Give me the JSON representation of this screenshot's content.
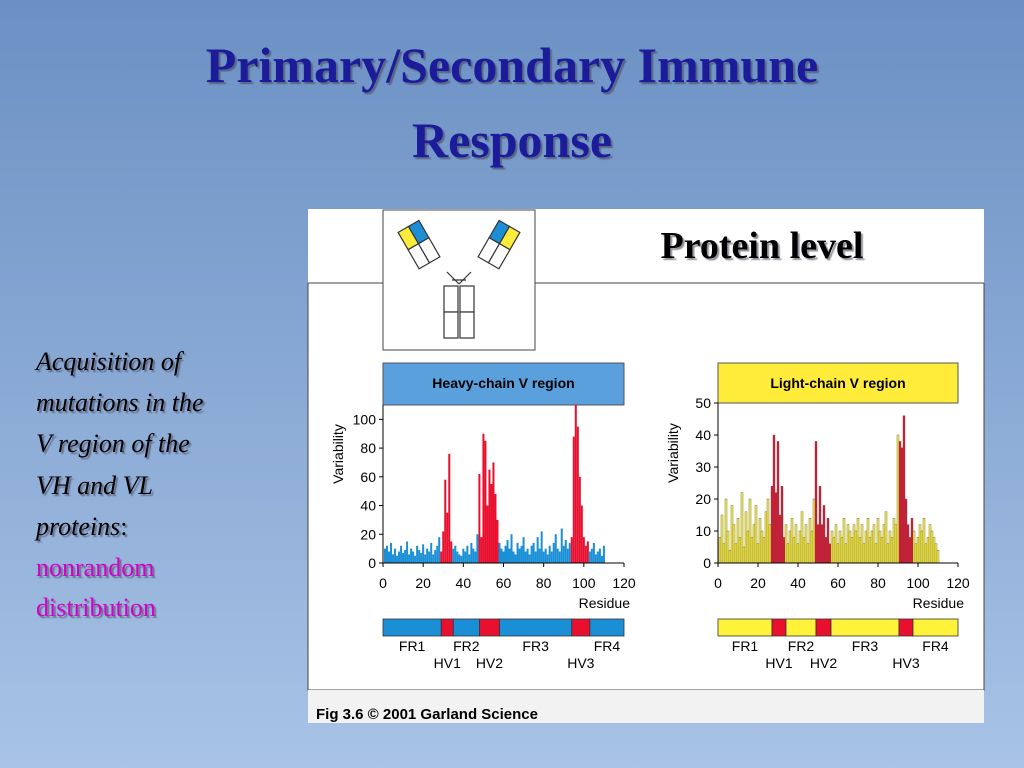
{
  "slide": {
    "title_lines": [
      "Primary/Secondary Immune",
      "Response"
    ],
    "body_lines": [
      "Acquisition of",
      "mutations in the",
      "V region of the",
      "VH and VL",
      "proteins"
    ],
    "body_colon": ":",
    "highlight_lines": [
      "nonrandom",
      "distribution"
    ],
    "figure_heading": "Protein level",
    "caption": "Fig 3.6  © 2001 Garland Science"
  },
  "chart_data": [
    {
      "type": "bar",
      "title": "Heavy-chain V  region",
      "ylabel": "Variability",
      "xlabel": "Residue",
      "xlim": [
        0,
        120
      ],
      "xticks": [
        0,
        20,
        40,
        60,
        80,
        100,
        120
      ],
      "ylim": [
        0,
        110
      ],
      "yticks": [
        0,
        20,
        40,
        60,
        80,
        100
      ],
      "x": [
        1,
        2,
        3,
        4,
        5,
        6,
        7,
        8,
        9,
        10,
        11,
        12,
        13,
        14,
        15,
        16,
        17,
        18,
        19,
        20,
        21,
        22,
        23,
        24,
        25,
        26,
        27,
        28,
        29,
        30,
        31,
        32,
        33,
        34,
        35,
        36,
        37,
        38,
        39,
        40,
        41,
        42,
        43,
        44,
        45,
        46,
        47,
        48,
        49,
        50,
        51,
        52,
        53,
        54,
        55,
        56,
        57,
        58,
        59,
        60,
        61,
        62,
        63,
        64,
        65,
        66,
        67,
        68,
        69,
        70,
        71,
        72,
        73,
        74,
        75,
        76,
        77,
        78,
        79,
        80,
        81,
        82,
        83,
        84,
        85,
        86,
        87,
        88,
        89,
        90,
        91,
        92,
        93,
        94,
        95,
        96,
        97,
        98,
        99,
        100,
        101,
        102,
        103,
        104,
        105,
        106,
        107,
        108,
        109,
        110
      ],
      "values": [
        10,
        12,
        8,
        14,
        6,
        10,
        5,
        8,
        12,
        7,
        9,
        15,
        6,
        10,
        8,
        5,
        12,
        9,
        7,
        13,
        6,
        10,
        8,
        14,
        6,
        9,
        12,
        18,
        8,
        22,
        58,
        35,
        76,
        15,
        10,
        12,
        8,
        6,
        5,
        10,
        8,
        12,
        6,
        14,
        10,
        8,
        20,
        62,
        18,
        90,
        85,
        40,
        65,
        55,
        70,
        48,
        30,
        14,
        10,
        8,
        12,
        16,
        10,
        20,
        8,
        6,
        14,
        10,
        12,
        18,
        8,
        10,
        6,
        12,
        14,
        8,
        18,
        10,
        22,
        8,
        10,
        6,
        12,
        8,
        14,
        20,
        10,
        8,
        24,
        12,
        16,
        10,
        14,
        18,
        88,
        110,
        95,
        60,
        40,
        18,
        12,
        15,
        8,
        10,
        14,
        6,
        8,
        10,
        5,
        12
      ],
      "header_color": "#5aa0dc",
      "regions": [
        {
          "label": "FR1",
          "start": 0,
          "end": 29,
          "color": "#1a8fd6"
        },
        {
          "label": "HV1",
          "start": 29,
          "end": 35,
          "color": "#e8102e"
        },
        {
          "label": "FR2",
          "start": 35,
          "end": 48,
          "color": "#1a8fd6"
        },
        {
          "label": "HV2",
          "start": 48,
          "end": 58,
          "color": "#e8102e"
        },
        {
          "label": "FR3",
          "start": 58,
          "end": 94,
          "color": "#1a8fd6"
        },
        {
          "label": "HV3",
          "start": 94,
          "end": 103,
          "color": "#e8102e"
        },
        {
          "label": "FR4",
          "start": 103,
          "end": 120,
          "color": "#1a8fd6"
        }
      ]
    },
    {
      "type": "bar",
      "title": "Light-chain V  region",
      "ylabel": "Variability",
      "xlabel": "Residue",
      "xlim": [
        0,
        120
      ],
      "xticks": [
        0,
        20,
        40,
        60,
        80,
        100,
        120
      ],
      "ylim": [
        0,
        50
      ],
      "yticks": [
        0,
        10,
        20,
        30,
        40,
        50
      ],
      "x": [
        1,
        2,
        3,
        4,
        5,
        6,
        7,
        8,
        9,
        10,
        11,
        12,
        13,
        14,
        15,
        16,
        17,
        18,
        19,
        20,
        21,
        22,
        23,
        24,
        25,
        26,
        27,
        28,
        29,
        30,
        31,
        32,
        33,
        34,
        35,
        36,
        37,
        38,
        39,
        40,
        41,
        42,
        43,
        44,
        45,
        46,
        47,
        48,
        49,
        50,
        51,
        52,
        53,
        54,
        55,
        56,
        57,
        58,
        59,
        60,
        61,
        62,
        63,
        64,
        65,
        66,
        67,
        68,
        69,
        70,
        71,
        72,
        73,
        74,
        75,
        76,
        77,
        78,
        79,
        80,
        81,
        82,
        83,
        84,
        85,
        86,
        87,
        88,
        89,
        90,
        91,
        92,
        93,
        94,
        95,
        96,
        97,
        98,
        99,
        100,
        101,
        102,
        103,
        104,
        105,
        106,
        107,
        108,
        109,
        110
      ],
      "values": [
        8,
        15,
        6,
        20,
        10,
        4,
        18,
        12,
        6,
        14,
        8,
        22,
        5,
        16,
        10,
        20,
        8,
        12,
        18,
        6,
        14,
        10,
        8,
        16,
        20,
        12,
        24,
        40,
        22,
        38,
        15,
        24,
        8,
        12,
        6,
        10,
        14,
        8,
        12,
        6,
        10,
        16,
        8,
        12,
        6,
        14,
        10,
        20,
        38,
        12,
        24,
        12,
        18,
        8,
        14,
        6,
        10,
        8,
        12,
        6,
        10,
        8,
        14,
        6,
        12,
        10,
        8,
        12,
        10,
        14,
        8,
        12,
        6,
        10,
        14,
        8,
        10,
        12,
        6,
        14,
        10,
        8,
        12,
        16,
        6,
        10,
        8,
        14,
        12,
        40,
        38,
        36,
        46,
        20,
        12,
        8,
        14,
        10,
        6,
        8,
        12,
        10,
        14,
        6,
        8,
        12,
        10,
        8,
        6,
        4
      ],
      "header_color": "#ffec3a",
      "regions": [
        {
          "label": "FR1",
          "start": 0,
          "end": 27,
          "color": "#fff23a"
        },
        {
          "label": "HV1",
          "start": 27,
          "end": 34,
          "color": "#e8102e"
        },
        {
          "label": "FR2",
          "start": 34,
          "end": 49,
          "color": "#fff23a"
        },
        {
          "label": "HV2",
          "start": 49,
          "end": 56.5,
          "color": "#e8102e"
        },
        {
          "label": "FR3",
          "start": 56.5,
          "end": 90.5,
          "color": "#fff23a"
        },
        {
          "label": "HV3",
          "start": 90.5,
          "end": 97.5,
          "color": "#e8102e"
        },
        {
          "label": "FR4",
          "start": 97.5,
          "end": 120,
          "color": "#fff23a"
        }
      ]
    }
  ]
}
